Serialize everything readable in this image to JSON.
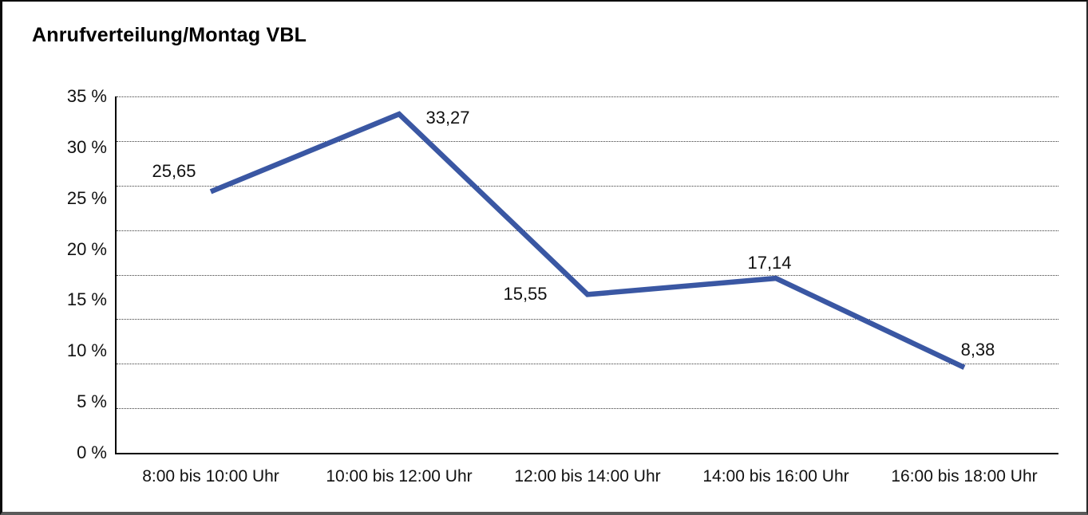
{
  "window": {
    "title": "Anrufverteilung/Montag VBL"
  },
  "chart_data": {
    "type": "line",
    "title": "Anrufverteilung/Montag VBL",
    "categories": [
      "8:00 bis 10:00 Uhr",
      "10:00 bis 12:00 Uhr",
      "12:00 bis 14:00 Uhr",
      "14:00 bis 16:00 Uhr",
      "16:00 bis 18:00 Uhr"
    ],
    "values": [
      25.65,
      33.27,
      15.55,
      17.14,
      8.38
    ],
    "point_labels": [
      "25,65",
      "33,27",
      "15,55",
      "17,14",
      "8,38"
    ],
    "xlabel": "",
    "ylabel": "",
    "ylim": [
      0,
      35
    ],
    "y_tick_values": [
      35,
      30,
      25,
      20,
      15,
      10,
      5,
      0
    ],
    "y_tick_labels": [
      "35 %",
      "30 %",
      "25 %",
      "20 %",
      "15 %",
      "10 %",
      "5 %",
      "0 %"
    ],
    "grid": "horizontal-dotted",
    "legend": "none",
    "line_color": "#3A57A3",
    "text_color": "#111111"
  }
}
